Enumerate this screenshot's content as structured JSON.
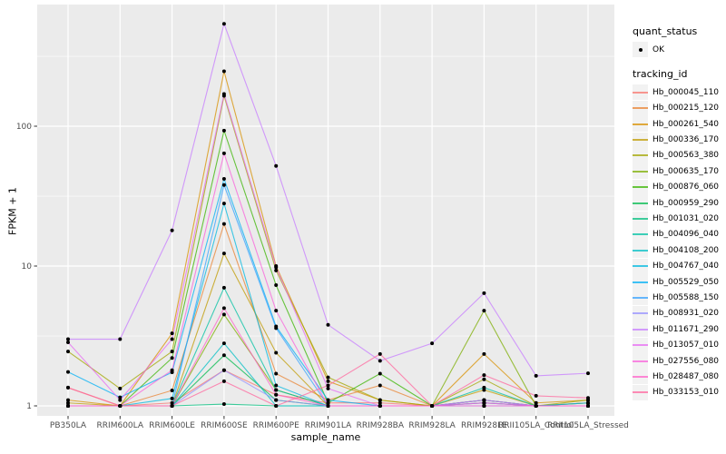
{
  "chart_data": {
    "type": "line",
    "title": "",
    "xlabel": "sample_name",
    "ylabel": "FPKM + 1",
    "y_scale": "log10",
    "y_ticks": [
      1,
      10,
      100
    ],
    "y_minor_ticks": [
      3.16,
      31.6,
      316
    ],
    "ylim": [
      0.85,
      740
    ],
    "grid": "on",
    "panel_bg": "#EBEBEB",
    "grid_color": "#FFFFFF",
    "point_color": "#000000",
    "axis_text_color": "#4D4D4D",
    "categories": [
      "PB350LA",
      "RRIM600LA",
      "RRIM600LE",
      "RRIM600SE",
      "RRIM600PE",
      "RRIM901LA",
      "RRIM928BA",
      "RRIM928LA",
      "RRIM928LE",
      "RRII105LA_Control",
      "RRII105LA_Stressed"
    ],
    "series": [
      {
        "name": "Hb_000045_110",
        "color": "#F8766D",
        "values": [
          1.35,
          1.0,
          1.05,
          1.8,
          1.2,
          1.05,
          1.05,
          1.0,
          1.05,
          1.0,
          1.0
        ]
      },
      {
        "name": "Hb_000215_120",
        "color": "#EA8331",
        "values": [
          1.0,
          1.0,
          1.29,
          20,
          1.7,
          1.1,
          1.4,
          1.0,
          1.1,
          1.0,
          1.05
        ]
      },
      {
        "name": "Hb_000261_540",
        "color": "#D89000",
        "values": [
          1.1,
          1.0,
          3.3,
          247,
          10,
          1.5,
          1.1,
          1.0,
          2.35,
          1.05,
          1.1
        ]
      },
      {
        "name": "Hb_000336_170",
        "color": "#C09B00",
        "values": [
          1.05,
          1.0,
          1.0,
          12.3,
          2.4,
          1.0,
          1.0,
          1.0,
          1.3,
          1.0,
          1.0
        ]
      },
      {
        "name": "Hb_000563_380",
        "color": "#A3A500",
        "values": [
          2.45,
          1.33,
          2.45,
          165,
          9.3,
          1.6,
          1.1,
          1.0,
          1.55,
          1.0,
          1.1
        ]
      },
      {
        "name": "Hb_000635_170",
        "color": "#7CAE00",
        "values": [
          1.0,
          1.0,
          1.0,
          4.5,
          1.3,
          1.0,
          1.0,
          1.0,
          4.8,
          1.0,
          1.05
        ]
      },
      {
        "name": "Hb_000876_060",
        "color": "#39B600",
        "values": [
          1.0,
          1.0,
          2.2,
          93,
          7.3,
          1.05,
          1.7,
          1.0,
          1.1,
          1.0,
          1.0
        ]
      },
      {
        "name": "Hb_000959_290",
        "color": "#00BB4E",
        "values": [
          1.0,
          1.0,
          1.0,
          2.3,
          1.1,
          1.0,
          1.0,
          1.0,
          1.0,
          1.0,
          1.0
        ]
      },
      {
        "name": "Hb_001031_020",
        "color": "#00BF7D",
        "values": [
          1.0,
          1.0,
          1.0,
          1.03,
          1.0,
          1.0,
          1.0,
          1.0,
          1.0,
          1.0,
          1.0
        ]
      },
      {
        "name": "Hb_004096_040",
        "color": "#00C1A3",
        "values": [
          1.0,
          1.0,
          1.0,
          7.0,
          1.3,
          1.0,
          1.0,
          1.0,
          1.35,
          1.0,
          1.0
        ]
      },
      {
        "name": "Hb_004108_200",
        "color": "#00BFC4",
        "values": [
          1.0,
          1.0,
          1.0,
          2.8,
          1.0,
          1.0,
          1.0,
          1.0,
          1.0,
          1.0,
          1.0
        ]
      },
      {
        "name": "Hb_004767_040",
        "color": "#00BAE0",
        "values": [
          1.0,
          1.0,
          1.13,
          28,
          1.4,
          1.0,
          1.0,
          1.0,
          1.05,
          1.0,
          1.0
        ]
      },
      {
        "name": "Hb_005529_050",
        "color": "#00B0F6",
        "values": [
          1.75,
          1.15,
          1.74,
          42,
          3.7,
          1.1,
          1.0,
          1.0,
          1.1,
          1.0,
          1.05
        ]
      },
      {
        "name": "Hb_005588_150",
        "color": "#35A2FF",
        "values": [
          1.0,
          1.0,
          1.0,
          38,
          3.6,
          1.0,
          1.0,
          1.0,
          1.0,
          1.0,
          1.0
        ]
      },
      {
        "name": "Hb_008931_020",
        "color": "#9590FF",
        "values": [
          1.0,
          1.0,
          1.0,
          1.8,
          1.1,
          1.0,
          1.0,
          1.0,
          1.0,
          1.0,
          1.0
        ]
      },
      {
        "name": "Hb_011671_290",
        "color": "#C77CFF",
        "values": [
          3.0,
          3.0,
          18,
          540,
          52,
          3.8,
          2.1,
          2.8,
          6.4,
          1.64,
          1.71
        ]
      },
      {
        "name": "Hb_013057_010",
        "color": "#E76BF3",
        "values": [
          2.85,
          1.1,
          3.0,
          170,
          9.8,
          1.33,
          1.0,
          1.0,
          1.1,
          1.0,
          1.0
        ]
      },
      {
        "name": "Hb_027556_080",
        "color": "#FA62DB",
        "values": [
          1.0,
          1.0,
          1.8,
          64,
          4.8,
          1.0,
          1.0,
          1.0,
          1.05,
          1.0,
          1.0
        ]
      },
      {
        "name": "Hb_028487_080",
        "color": "#FF61C9",
        "values": [
          1.0,
          1.0,
          1.0,
          5.0,
          1.2,
          1.0,
          1.0,
          1.0,
          1.0,
          1.0,
          1.0
        ]
      },
      {
        "name": "Hb_033153_010",
        "color": "#FF689F",
        "values": [
          1.35,
          1.0,
          1.0,
          1.5,
          1.0,
          1.4,
          2.35,
          1.0,
          1.66,
          1.18,
          1.14
        ]
      }
    ]
  },
  "legend": {
    "quant_title": "quant_status",
    "quant_items": [
      {
        "label": "OK"
      }
    ],
    "tracking_title": "tracking_id"
  }
}
